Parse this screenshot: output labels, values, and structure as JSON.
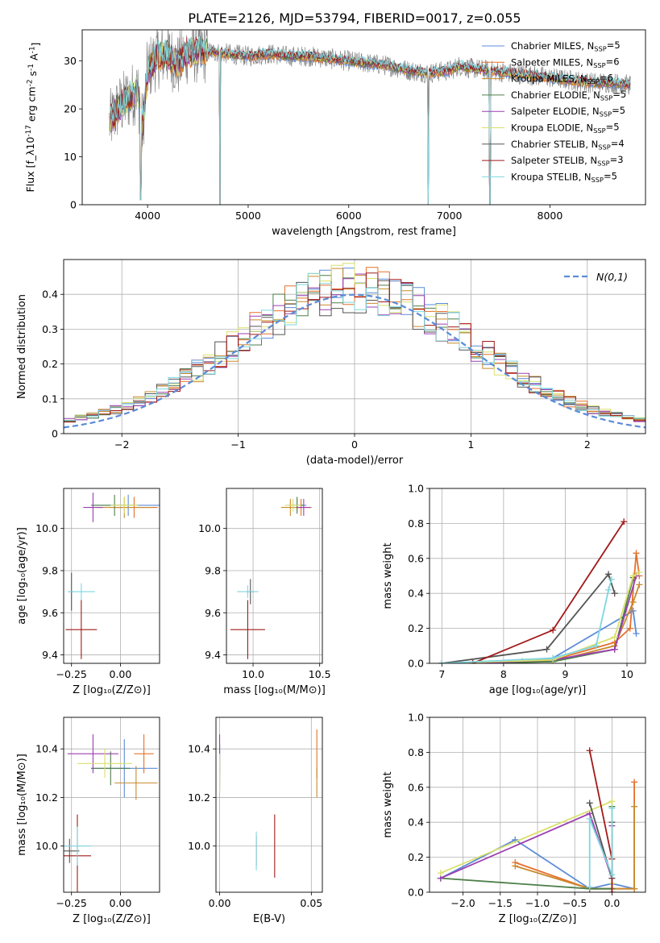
{
  "figure_title": "PLATE=2126, MJD=53794, FIBERID=0017, z=0.055",
  "colors": {
    "s0": "#5b8bd8",
    "s1": "#e6702c",
    "s2": "#c98a2c",
    "s3": "#4e7f4a",
    "s4": "#9c3fb1",
    "s5": "#d9e06b",
    "s6": "#555555",
    "s7": "#a11a1a",
    "s8": "#7fd6e0",
    "gauss": "#5b8bd8"
  },
  "legend_labels": [
    "Chabrier MILES, N_{SSP}=5",
    "Salpeter MILES, N_{SSP}=6",
    "Kroupa MILES, N_{SSP}=6",
    "Chabrier ELODIE, N_{SSP}=5",
    "Salpeter ELODIE, N_{SSP}=5",
    "Kroupa ELODIE, N_{SSP}=5",
    "Chabrier STELIB, N_{SSP}=4",
    "Salpeter STELIB, N_{SSP}=3",
    "Kroupa STELIB, N_{SSP}=5"
  ],
  "chart_data": [
    {
      "id": "spectrum",
      "type": "line",
      "xlabel": "wavelength [Angstrom, rest frame]",
      "ylabel": "Flux [f_λ10^{-17} erg cm^{-2} s^{-1} A^{-1}]",
      "xlim": [
        3350,
        8950
      ],
      "ylim": [
        0,
        36.5
      ],
      "xticks": [
        4000,
        5000,
        6000,
        7000,
        8000
      ],
      "yticks": [
        0,
        10,
        20,
        30
      ],
      "continuum": [
        [
          3620,
          17
        ],
        [
          3700,
          20
        ],
        [
          3800,
          22
        ],
        [
          3900,
          24
        ],
        [
          3950,
          16
        ],
        [
          4000,
          28
        ],
        [
          4100,
          31
        ],
        [
          4200,
          31.5
        ],
        [
          4300,
          29
        ],
        [
          4400,
          32
        ],
        [
          4600,
          32
        ],
        [
          4800,
          31.5
        ],
        [
          5000,
          31
        ],
        [
          5200,
          31.5
        ],
        [
          5400,
          31
        ],
        [
          5600,
          31
        ],
        [
          5800,
          30.5
        ],
        [
          6000,
          30
        ],
        [
          6200,
          29.5
        ],
        [
          6400,
          29
        ],
        [
          6600,
          28
        ],
        [
          6800,
          27.5
        ],
        [
          7000,
          28
        ],
        [
          7100,
          29
        ],
        [
          7200,
          28.5
        ],
        [
          7400,
          28
        ],
        [
          7600,
          27.5
        ],
        [
          7800,
          27
        ],
        [
          8000,
          26.5
        ],
        [
          8200,
          26
        ],
        [
          8400,
          25.5
        ],
        [
          8600,
          25.5
        ],
        [
          8800,
          25
        ]
      ],
      "dips": [
        [
          3933,
          1
        ],
        [
          4720,
          0
        ],
        [
          6790,
          0
        ],
        [
          7405,
          0
        ]
      ],
      "grid": false
    },
    {
      "id": "residuals",
      "type": "histogram",
      "xlabel": "(data-model)/error",
      "ylabel": "Normed distribution",
      "xlim": [
        -2.5,
        2.5
      ],
      "ylim": [
        0,
        0.5
      ],
      "xticks": [
        -2,
        -1,
        0,
        1,
        2
      ],
      "yticks": [
        0,
        0.1,
        0.2,
        0.3,
        0.4
      ],
      "legend": "N(0,1)",
      "bin_width": 0.1,
      "grid": true
    },
    {
      "id": "age_vs_Z",
      "type": "errorbar",
      "xlabel": "Z [log10(Z/Z⊙)]",
      "ylabel": "age  [log10(age/yr)]",
      "xlim": [
        -0.29,
        0.2
      ],
      "ylim": [
        9.36,
        10.19
      ],
      "xticks": [
        -0.25,
        0.0
      ],
      "xticklabels": [
        "−0.25",
        "0.00"
      ],
      "yticks": [
        9.4,
        9.6,
        9.8,
        10.0
      ],
      "yticklabels": [
        "9.4",
        "9.6",
        "9.8",
        "10.0"
      ],
      "points": [
        {
          "s": 0,
          "x": 0.04,
          "y": 10.11,
          "xe": 0.18,
          "ye": 0.05
        },
        {
          "s": 1,
          "x": 0.07,
          "y": 10.1,
          "xe": 0.12,
          "ye": 0.05
        },
        {
          "s": 2,
          "x": 0.02,
          "y": 10.1,
          "xe": 0.14,
          "ye": 0.05
        },
        {
          "s": 3,
          "x": -0.03,
          "y": 10.11,
          "xe": 0.12,
          "ye": 0.05
        },
        {
          "s": 4,
          "x": -0.14,
          "y": 10.1,
          "xe": 0.05,
          "ye": 0.07
        },
        {
          "s": 5,
          "x": 0.02,
          "y": 10.11,
          "xe": 0.07,
          "ye": 0.04
        },
        {
          "s": 6,
          "x": -0.25,
          "y": 9.7,
          "xe": 0.01,
          "ye": 0.09
        },
        {
          "s": 7,
          "x": -0.2,
          "y": 9.52,
          "xe": 0.08,
          "ye": 0.14
        },
        {
          "s": 8,
          "x": -0.2,
          "y": 9.7,
          "xe": 0.07,
          "ye": 0.04
        }
      ]
    },
    {
      "id": "age_vs_mass",
      "type": "errorbar",
      "xlabel": "mass [log10(M/M⊙)]",
      "ylabel": "",
      "xlim": [
        9.8,
        10.52
      ],
      "ylim": [
        9.36,
        10.19
      ],
      "xticks": [
        10.0,
        10.5
      ],
      "xticklabels": [
        "10.0",
        "10.5"
      ],
      "yticks": [
        9.4,
        9.6,
        9.8,
        10.0
      ],
      "yticklabels": [
        "9.4",
        "9.6",
        "9.8",
        "10.0"
      ],
      "points": [
        {
          "s": 0,
          "x": 10.33,
          "y": 10.11,
          "xe": 0.07,
          "ye": 0.03
        },
        {
          "s": 1,
          "x": 10.36,
          "y": 10.1,
          "xe": 0.08,
          "ye": 0.04
        },
        {
          "s": 2,
          "x": 10.28,
          "y": 10.1,
          "xe": 0.07,
          "ye": 0.04
        },
        {
          "s": 3,
          "x": 10.33,
          "y": 10.11,
          "xe": 0.05,
          "ye": 0.04
        },
        {
          "s": 4,
          "x": 10.38,
          "y": 10.1,
          "xe": 0.05,
          "ye": 0.04
        },
        {
          "s": 5,
          "x": 10.3,
          "y": 10.11,
          "xe": 0.06,
          "ye": 0.03
        },
        {
          "s": 6,
          "x": 9.98,
          "y": 9.7,
          "xe": 0.03,
          "ye": 0.06
        },
        {
          "s": 7,
          "x": 9.96,
          "y": 9.52,
          "xe": 0.13,
          "ye": 0.14
        },
        {
          "s": 8,
          "x": 9.96,
          "y": 9.7,
          "xe": 0.08,
          "ye": 0.03
        }
      ]
    },
    {
      "id": "weight_vs_age",
      "type": "line",
      "xlabel": "age  [log10(age/yr)]",
      "ylabel": "mass weight",
      "xlim": [
        6.8,
        10.3
      ],
      "ylim": [
        0,
        1
      ],
      "xticks": [
        7,
        8,
        9,
        10
      ],
      "yticks": [
        0,
        0.2,
        0.4,
        0.6,
        0.8,
        1.0
      ],
      "yticklabels": [
        "0.0",
        "0.2",
        "0.4",
        "0.6",
        "0.8",
        "1.0"
      ],
      "series": [
        {
          "s": 0,
          "x": [
            7.0,
            8.3,
            8.8,
            10.1,
            10.15
          ],
          "y": [
            0.0,
            0.01,
            0.03,
            0.3,
            0.17
          ]
        },
        {
          "s": 1,
          "x": [
            7.0,
            8.3,
            8.8,
            9.8,
            10.05,
            10.15,
            10.2
          ],
          "y": [
            0.0,
            0.01,
            0.02,
            0.12,
            0.2,
            0.63,
            0.5
          ]
        },
        {
          "s": 2,
          "x": [
            7.0,
            8.8,
            9.8,
            10.1,
            10.2
          ],
          "y": [
            0.0,
            0.01,
            0.1,
            0.35,
            0.45
          ]
        },
        {
          "s": 3,
          "x": [
            7.5,
            8.8,
            9.8,
            10.1
          ],
          "y": [
            0.0,
            0.01,
            0.08,
            0.49
          ]
        },
        {
          "s": 4,
          "x": [
            7.5,
            8.8,
            9.8,
            10.15
          ],
          "y": [
            0.0,
            0.02,
            0.08,
            0.5
          ]
        },
        {
          "s": 5,
          "x": [
            7.0,
            8.8,
            9.8,
            10.1,
            10.2
          ],
          "y": [
            0.0,
            0.02,
            0.15,
            0.5,
            0.52
          ]
        },
        {
          "s": 6,
          "x": [
            7.0,
            8.7,
            9.7,
            9.8
          ],
          "y": [
            0.0,
            0.08,
            0.51,
            0.4
          ]
        },
        {
          "s": 7,
          "x": [
            7.5,
            8.8,
            9.95
          ],
          "y": [
            0.0,
            0.19,
            0.81
          ]
        },
        {
          "s": 8,
          "x": [
            7.0,
            8.8,
            9.5,
            9.7,
            9.75
          ],
          "y": [
            0.0,
            0.03,
            0.1,
            0.42,
            0.48
          ]
        }
      ]
    },
    {
      "id": "mass_vs_Z",
      "type": "errorbar",
      "xlabel": "Z [log10(Z/Z⊙)]",
      "ylabel": "mass [log10(M/M⊙)]",
      "xlim": [
        -0.29,
        0.2
      ],
      "ylim": [
        9.81,
        10.53
      ],
      "xticks": [
        -0.25,
        0.0
      ],
      "xticklabels": [
        "−0.25",
        "0.00"
      ],
      "yticks": [
        10.0,
        10.2,
        10.4
      ],
      "yticklabels": [
        "10.0",
        "10.2",
        "10.4"
      ],
      "points": [
        {
          "s": 0,
          "x": 0.02,
          "y": 10.32,
          "xe": 0.17,
          "ye": 0.12
        },
        {
          "s": 1,
          "x": 0.12,
          "y": 10.38,
          "xe": 0.05,
          "ye": 0.08
        },
        {
          "s": 2,
          "x": 0.08,
          "y": 10.26,
          "xe": 0.11,
          "ye": 0.07
        },
        {
          "s": 3,
          "x": -0.05,
          "y": 10.32,
          "xe": 0.1,
          "ye": 0.07
        },
        {
          "s": 4,
          "x": -0.14,
          "y": 10.38,
          "xe": 0.13,
          "ye": 0.08
        },
        {
          "s": 5,
          "x": -0.08,
          "y": 10.34,
          "xe": 0.14,
          "ye": 0.06
        },
        {
          "s": 6,
          "x": -0.26,
          "y": 9.98,
          "xe": 0.05,
          "ye": 0.05
        },
        {
          "s": 7,
          "x": -0.22,
          "y": 9.96,
          "xe": 0.07,
          "ye": 0.17
        },
        {
          "s": 8,
          "x": -0.22,
          "y": 10.0,
          "xe": 0.07,
          "ye": 0.08
        }
      ]
    },
    {
      "id": "mass_vs_EBV",
      "type": "errorbar",
      "xlabel": "E(B-V)",
      "ylabel": "",
      "xlim": [
        -0.002,
        0.056
      ],
      "ylim": [
        9.81,
        10.53
      ],
      "xticks": [
        0.0,
        0.05
      ],
      "xticklabels": [
        "0.00",
        "0.05"
      ],
      "yticks": [
        10.0,
        10.2,
        10.4
      ],
      "yticklabels": [
        "10.0",
        "10.2",
        "10.4"
      ],
      "points": [
        {
          "s": 0,
          "x": 0.0,
          "y": 10.32,
          "xe": 0.0,
          "ye": 0.1
        },
        {
          "s": 1,
          "x": 0.053,
          "y": 10.38,
          "xe": 0.0,
          "ye": 0.1
        },
        {
          "s": 2,
          "x": 0.053,
          "y": 10.26,
          "xe": 0.0,
          "ye": 0.06
        },
        {
          "s": 3,
          "x": 0.0,
          "y": 10.32,
          "xe": 0.0,
          "ye": 0.08
        },
        {
          "s": 4,
          "x": 0.0,
          "y": 10.38,
          "xe": 0.0,
          "ye": 0.08
        },
        {
          "s": 5,
          "x": 0.0,
          "y": 10.3,
          "xe": 0.0,
          "ye": 0.08
        },
        {
          "s": 6,
          "x": 0.02,
          "y": 9.98,
          "xe": 0.0,
          "ye": 0.06
        },
        {
          "s": 7,
          "x": 0.03,
          "y": 10.0,
          "xe": 0.0,
          "ye": 0.13
        },
        {
          "s": 8,
          "x": 0.02,
          "y": 9.98,
          "xe": 0.0,
          "ye": 0.08
        }
      ]
    },
    {
      "id": "weight_vs_Z",
      "type": "line",
      "xlabel": "Z [log10(Z/Z⊙)]",
      "ylabel": "mass weight",
      "xlim": [
        -2.45,
        0.45
      ],
      "ylim": [
        0,
        1
      ],
      "xticks": [
        -2.0,
        -1.5,
        -1.0,
        -0.5,
        0.0
      ],
      "xticklabels": [
        "−2.0",
        "−1.5",
        "−1.0",
        "−0.5",
        "0.0"
      ],
      "yticks": [
        0,
        0.2,
        0.4,
        0.6,
        0.8,
        1.0
      ],
      "yticklabels": [
        "0.0",
        "0.2",
        "0.4",
        "0.6",
        "0.8",
        "1.0"
      ],
      "series": [
        {
          "s": 0,
          "x": [
            -2.3,
            -1.3,
            -0.3,
            0.0,
            0.3
          ],
          "y": [
            0.08,
            0.3,
            0.02,
            0.05,
            0.02
          ]
        },
        {
          "s": 1,
          "x": [
            -1.3,
            -0.3,
            0.3,
            0.3
          ],
          "y": [
            0.17,
            0.02,
            0.02,
            0.63
          ]
        },
        {
          "s": 2,
          "x": [
            -1.3,
            -0.3,
            0.3,
            0.3
          ],
          "y": [
            0.15,
            0.02,
            0.02,
            0.49
          ]
        },
        {
          "s": 3,
          "x": [
            -2.3,
            -0.3,
            0.0,
            0.0
          ],
          "y": [
            0.08,
            0.02,
            0.02,
            0.49
          ]
        },
        {
          "s": 4,
          "x": [
            -2.3,
            -0.3,
            0.0,
            0.0
          ],
          "y": [
            0.08,
            0.45,
            0.08,
            0.38
          ]
        },
        {
          "s": 5,
          "x": [
            -2.3,
            0.0,
            0.0
          ],
          "y": [
            0.11,
            0.52,
            0.05
          ]
        },
        {
          "s": 6,
          "x": [
            -0.3,
            0.0,
            0.0
          ],
          "y": [
            0.51,
            0.08,
            0.4
          ]
        },
        {
          "s": 7,
          "x": [
            -0.3,
            0.0,
            0.0
          ],
          "y": [
            0.81,
            0.19,
            0.0
          ]
        },
        {
          "s": 8,
          "x": [
            -0.3,
            -0.3,
            0.0,
            0.0
          ],
          "y": [
            0.03,
            0.42,
            0.1,
            0.48
          ]
        }
      ]
    }
  ]
}
